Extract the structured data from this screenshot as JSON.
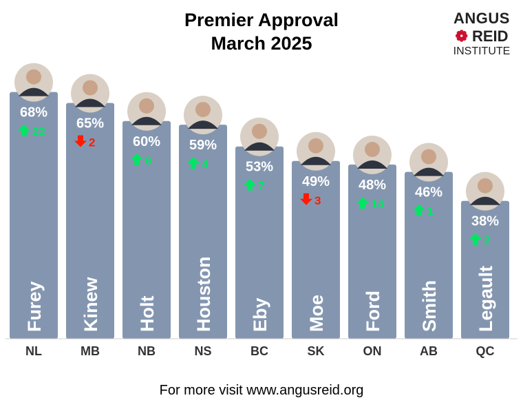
{
  "chart_data": {
    "type": "bar",
    "title": "Premier Approval",
    "subtitle": "March 2025",
    "categories": [
      "NL",
      "MB",
      "NB",
      "NS",
      "BC",
      "SK",
      "ON",
      "AB",
      "QC"
    ],
    "names": [
      "Furey",
      "Kinew",
      "Holt",
      "Houston",
      "Eby",
      "Moe",
      "Ford",
      "Smith",
      "Legault"
    ],
    "values": [
      68,
      65,
      60,
      59,
      53,
      49,
      48,
      46,
      38
    ],
    "value_labels": [
      "68%",
      "65%",
      "60%",
      "59%",
      "53%",
      "49%",
      "48%",
      "46%",
      "38%"
    ],
    "changes": [
      22,
      -2,
      6,
      4,
      7,
      -3,
      14,
      1,
      2
    ],
    "ylim": [
      0,
      100
    ],
    "grid": false,
    "colors": {
      "bar": "#8496AF",
      "up": "#00E663",
      "down": "#FF1A00",
      "text": "#ffffff"
    }
  },
  "logo": {
    "line1": "ANGUS",
    "line2": "REID",
    "line3": "INSTITUTE"
  },
  "footer": "For more visit www.angusreid.org"
}
